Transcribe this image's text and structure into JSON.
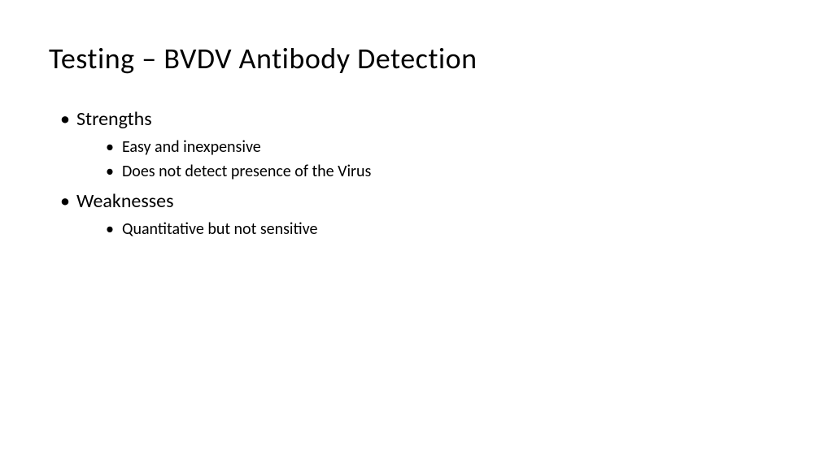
{
  "slide": {
    "title": "Testing – BVDV Antibody Detection",
    "sections": [
      {
        "heading": "Strengths",
        "items": [
          "Easy and inexpensive",
          "Does not detect presence of the Virus"
        ]
      },
      {
        "heading": "Weaknesses",
        "items": [
          "Quantitative but not sensitive"
        ]
      }
    ]
  },
  "styling": {
    "background_color": "#ffffff",
    "text_color": "#000000",
    "title_fontsize": 36,
    "l1_fontsize": 24,
    "l2_fontsize": 20,
    "font_family": "Calibri"
  }
}
